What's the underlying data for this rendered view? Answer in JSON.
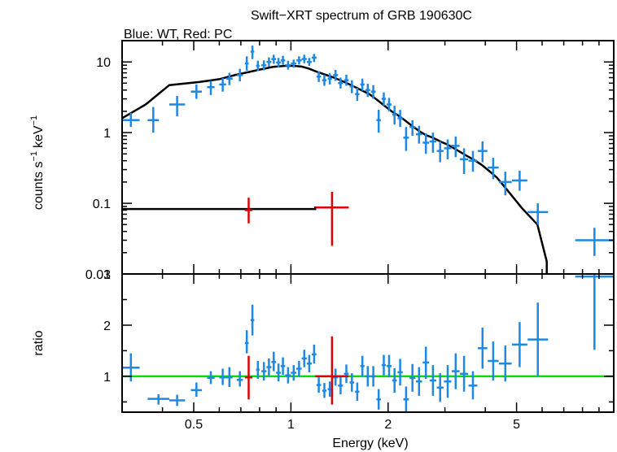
{
  "chart_data": [
    {
      "type": "scatter",
      "title": "Swift−XRT spectrum of GRB 190630C",
      "subtitle": "Blue: WT, Red: PC",
      "ylabel_main": "counts s",
      "ylabel_unit": "keV",
      "ylabel_sup": "−1",
      "yscale": "log",
      "ylim": [
        0.01,
        20
      ],
      "xscale": "log",
      "xlim": [
        0.3,
        10
      ],
      "yticks": [
        {
          "v": 0.01,
          "label": "0.01"
        },
        {
          "v": 0.1,
          "label": "0.1"
        },
        {
          "v": 1,
          "label": "1"
        },
        {
          "v": 10,
          "label": "10"
        }
      ],
      "colors": {
        "wt": "#1e88e5",
        "pc": "#dd0000",
        "model": "#000000"
      },
      "series": [
        {
          "key": "wt",
          "points": [
            [
              0.3,
              0.34,
              1.5,
              1.2,
              1.9
            ],
            [
              0.36,
              0.39,
              1.5,
              1.0,
              2.3
            ],
            [
              0.42,
              0.47,
              2.5,
              1.7,
              3.3
            ],
            [
              0.49,
              0.53,
              3.8,
              3.0,
              4.8
            ],
            [
              0.55,
              0.58,
              4.4,
              3.4,
              5.4
            ],
            [
              0.6,
              0.63,
              4.8,
              3.8,
              5.9
            ],
            [
              0.63,
              0.66,
              5.8,
              4.7,
              7.0
            ],
            [
              0.68,
              0.71,
              6.5,
              5.3,
              8.0
            ],
            [
              0.72,
              0.74,
              9.5,
              7.5,
              12
            ],
            [
              0.75,
              0.77,
              14,
              11,
              17
            ],
            [
              0.78,
              0.8,
              8.8,
              7.4,
              10.4
            ],
            [
              0.81,
              0.84,
              9.0,
              7.6,
              10.5
            ],
            [
              0.84,
              0.87,
              10.0,
              8.6,
              11.6
            ],
            [
              0.87,
              0.9,
              11.0,
              9.4,
              12.6
            ],
            [
              0.9,
              0.93,
              9.8,
              8.4,
              11.4
            ],
            [
              0.93,
              0.96,
              10.5,
              9.1,
              12.2
            ],
            [
              0.96,
              1.0,
              9.0,
              7.8,
              10.4
            ],
            [
              1.0,
              1.04,
              9.5,
              8.3,
              10.8
            ],
            [
              1.04,
              1.08,
              10.5,
              9.2,
              12.0
            ],
            [
              1.08,
              1.12,
              11.0,
              9.6,
              12.6
            ],
            [
              1.12,
              1.16,
              10.0,
              8.8,
              11.4
            ],
            [
              1.16,
              1.2,
              11.5,
              10.0,
              13.0
            ],
            [
              1.2,
              1.24,
              6.2,
              5.2,
              7.4
            ],
            [
              1.25,
              1.29,
              5.5,
              4.6,
              6.6
            ],
            [
              1.3,
              1.34,
              5.8,
              4.8,
              6.9
            ],
            [
              1.35,
              1.4,
              6.5,
              5.4,
              7.7
            ],
            [
              1.4,
              1.45,
              5.0,
              4.2,
              6.0
            ],
            [
              1.46,
              1.51,
              5.5,
              4.6,
              6.6
            ],
            [
              1.52,
              1.57,
              4.5,
              3.6,
              5.5
            ],
            [
              1.58,
              1.63,
              3.5,
              2.8,
              4.3
            ],
            [
              1.64,
              1.69,
              4.8,
              3.9,
              5.8
            ],
            [
              1.7,
              1.76,
              4.0,
              3.2,
              4.9
            ],
            [
              1.77,
              1.83,
              3.8,
              3.0,
              4.7
            ],
            [
              1.84,
              1.9,
              1.5,
              1.0,
              2.1
            ],
            [
              1.91,
              1.97,
              3.0,
              2.4,
              3.7
            ],
            [
              1.98,
              2.05,
              2.5,
              2.0,
              3.1
            ],
            [
              2.06,
              2.13,
              1.8,
              1.3,
              2.4
            ],
            [
              2.14,
              2.22,
              1.6,
              1.2,
              2.1
            ],
            [
              2.23,
              2.32,
              0.85,
              0.55,
              1.2
            ],
            [
              2.33,
              2.43,
              1.2,
              0.9,
              1.5
            ],
            [
              2.44,
              2.55,
              0.95,
              0.7,
              1.25
            ],
            [
              2.56,
              2.68,
              0.72,
              0.5,
              0.98
            ],
            [
              2.69,
              2.82,
              0.75,
              0.52,
              1.0
            ],
            [
              2.83,
              2.97,
              0.55,
              0.38,
              0.75
            ],
            [
              2.98,
              3.14,
              0.6,
              0.42,
              0.8
            ],
            [
              3.15,
              3.33,
              0.65,
              0.45,
              0.88
            ],
            [
              3.34,
              3.54,
              0.42,
              0.26,
              0.6
            ],
            [
              3.55,
              3.78,
              0.4,
              0.28,
              0.55
            ],
            [
              3.79,
              4.06,
              0.55,
              0.38,
              0.75
            ],
            [
              4.07,
              4.4,
              0.32,
              0.22,
              0.44
            ],
            [
              4.41,
              4.83,
              0.2,
              0.13,
              0.28
            ],
            [
              4.84,
              5.4,
              0.21,
              0.15,
              0.29
            ],
            [
              5.41,
              6.26,
              0.075,
              0.05,
              0.1
            ],
            [
              7.6,
              9.99,
              0.03,
              0.018,
              0.045
            ]
          ]
        },
        {
          "key": "pc",
          "points": [
            [
              0.72,
              0.76,
              0.08,
              0.052,
              0.12
            ],
            [
              1.19,
              1.51,
              0.087,
              0.025,
              0.145
            ]
          ]
        }
      ],
      "model": {
        "key": "model",
        "points": [
          [
            0.3,
            1.6
          ],
          [
            0.355,
            2.5
          ],
          [
            0.42,
            4.7
          ],
          [
            0.52,
            5.2
          ],
          [
            0.6,
            5.7
          ],
          [
            0.67,
            6.5
          ],
          [
            0.74,
            7.2
          ],
          [
            0.8,
            7.8
          ],
          [
            0.88,
            8.5
          ],
          [
            0.96,
            8.8
          ],
          [
            1.02,
            8.8
          ],
          [
            1.08,
            8.6
          ],
          [
            1.14,
            8.0
          ],
          [
            1.2,
            7.3
          ],
          [
            1.28,
            6.6
          ],
          [
            1.36,
            6.0
          ],
          [
            1.45,
            5.3
          ],
          [
            1.55,
            4.6
          ],
          [
            1.65,
            4.0
          ],
          [
            1.75,
            3.5
          ],
          [
            1.85,
            2.9
          ],
          [
            1.95,
            2.4
          ],
          [
            2.05,
            2.0
          ],
          [
            2.15,
            1.75
          ],
          [
            2.25,
            1.5
          ],
          [
            2.37,
            1.25
          ],
          [
            2.5,
            1.05
          ],
          [
            2.62,
            0.92
          ],
          [
            2.75,
            0.85
          ],
          [
            2.9,
            0.75
          ],
          [
            3.05,
            0.68
          ],
          [
            3.2,
            0.6
          ],
          [
            3.35,
            0.53
          ],
          [
            3.5,
            0.47
          ],
          [
            3.7,
            0.41
          ],
          [
            3.9,
            0.35
          ],
          [
            4.1,
            0.29
          ],
          [
            4.35,
            0.23
          ],
          [
            4.7,
            0.15
          ],
          [
            5.2,
            0.085
          ],
          [
            5.8,
            0.05
          ],
          [
            6.2,
            0.015
          ]
        ]
      },
      "model_pc": {
        "points": [
          [
            0.3,
            0.083
          ],
          [
            1.19,
            0.083
          ],
          [
            1.19,
            0.087
          ],
          [
            1.51,
            0.087
          ]
        ]
      }
    },
    {
      "type": "scatter",
      "xlabel": "Energy (keV)",
      "ylabel": "ratio",
      "yscale": "linear",
      "ylim": [
        0.3,
        3.0
      ],
      "xscale": "log",
      "xlim": [
        0.3,
        10
      ],
      "xticks": [
        {
          "v": 0.5,
          "label": "0.5"
        },
        {
          "v": 1,
          "label": "1"
        },
        {
          "v": 2,
          "label": "2"
        },
        {
          "v": 5,
          "label": "5"
        }
      ],
      "yticks": [
        {
          "v": 1,
          "label": "1"
        },
        {
          "v": 2,
          "label": "2"
        },
        {
          "v": 3,
          "label": "3"
        }
      ],
      "reference_line": {
        "y": 1,
        "color": "#00dd00"
      },
      "series": [
        {
          "key": "wt",
          "points": [
            [
              0.3,
              0.34,
              1.17,
              0.9,
              1.45
            ],
            [
              0.36,
              0.42,
              0.56,
              0.45,
              0.65
            ],
            [
              0.42,
              0.47,
              0.53,
              0.42,
              0.64
            ],
            [
              0.49,
              0.53,
              0.73,
              0.6,
              0.88
            ],
            [
              0.55,
              0.58,
              0.97,
              0.85,
              1.1
            ],
            [
              0.6,
              0.63,
              0.98,
              0.83,
              1.15
            ],
            [
              0.63,
              0.66,
              0.98,
              0.79,
              1.18
            ],
            [
              0.68,
              0.71,
              0.93,
              0.8,
              1.1
            ],
            [
              0.72,
              0.74,
              1.65,
              1.45,
              1.9
            ],
            [
              0.75,
              0.77,
              2.1,
              1.8,
              2.4
            ],
            [
              0.78,
              0.8,
              1.13,
              0.95,
              1.3
            ],
            [
              0.81,
              0.84,
              1.1,
              0.92,
              1.28
            ],
            [
              0.84,
              0.87,
              1.18,
              1.0,
              1.35
            ],
            [
              0.87,
              0.9,
              1.28,
              1.1,
              1.48
            ],
            [
              0.9,
              0.93,
              1.07,
              0.9,
              1.25
            ],
            [
              0.93,
              0.96,
              1.2,
              1.03,
              1.37
            ],
            [
              0.96,
              1.0,
              1.02,
              0.86,
              1.18
            ],
            [
              1.0,
              1.04,
              1.07,
              0.92,
              1.22
            ],
            [
              1.04,
              1.08,
              1.15,
              1.0,
              1.3
            ],
            [
              1.08,
              1.12,
              1.35,
              1.18,
              1.52
            ],
            [
              1.12,
              1.16,
              1.25,
              1.08,
              1.42
            ],
            [
              1.16,
              1.2,
              1.43,
              1.25,
              1.62
            ],
            [
              1.2,
              1.24,
              0.83,
              0.68,
              0.98
            ],
            [
              1.25,
              1.29,
              0.72,
              0.58,
              0.87
            ],
            [
              1.3,
              1.34,
              0.75,
              0.6,
              0.9
            ],
            [
              1.35,
              1.4,
              0.98,
              0.82,
              1.15
            ],
            [
              1.4,
              1.45,
              0.82,
              0.65,
              0.99
            ],
            [
              1.46,
              1.51,
              1.05,
              0.87,
              1.23
            ],
            [
              1.52,
              1.57,
              0.88,
              0.7,
              1.06
            ],
            [
              1.58,
              1.63,
              0.7,
              0.52,
              0.88
            ],
            [
              1.64,
              1.69,
              1.2,
              1.0,
              1.4
            ],
            [
              1.7,
              1.76,
              1.0,
              0.8,
              1.2
            ],
            [
              1.77,
              1.83,
              1.0,
              0.8,
              1.2
            ],
            [
              1.84,
              1.9,
              0.55,
              0.35,
              0.75
            ],
            [
              1.91,
              1.97,
              1.22,
              1.02,
              1.42
            ],
            [
              1.98,
              2.05,
              1.2,
              0.98,
              1.42
            ],
            [
              2.06,
              2.13,
              0.92,
              0.68,
              1.16
            ],
            [
              2.14,
              2.22,
              1.08,
              0.82,
              1.34
            ],
            [
              2.23,
              2.32,
              0.55,
              0.3,
              0.8
            ],
            [
              2.33,
              2.43,
              0.97,
              0.7,
              1.24
            ],
            [
              2.44,
              2.55,
              0.9,
              0.62,
              1.18
            ],
            [
              2.56,
              2.68,
              1.27,
              0.95,
              1.58
            ],
            [
              2.69,
              2.82,
              0.92,
              0.62,
              1.22
            ],
            [
              2.83,
              2.97,
              0.78,
              0.5,
              1.06
            ],
            [
              2.98,
              3.14,
              0.9,
              0.58,
              1.22
            ],
            [
              3.15,
              3.33,
              1.1,
              0.75,
              1.45
            ],
            [
              3.34,
              3.54,
              1.05,
              0.7,
              1.4
            ],
            [
              3.55,
              3.78,
              0.82,
              0.55,
              1.1
            ],
            [
              3.79,
              4.06,
              1.55,
              1.15,
              1.95
            ],
            [
              4.07,
              4.4,
              1.3,
              0.92,
              1.68
            ],
            [
              4.41,
              4.83,
              1.25,
              0.9,
              1.6
            ],
            [
              4.84,
              5.4,
              1.62,
              1.18,
              2.06
            ],
            [
              5.41,
              6.26,
              1.72,
              1.0,
              2.44
            ],
            [
              7.6,
              9.99,
              2.95,
              1.52,
              3.3
            ]
          ]
        },
        {
          "key": "pc",
          "points": [
            [
              0.72,
              0.76,
              0.98,
              0.55,
              1.4
            ],
            [
              1.19,
              1.51,
              1.0,
              0.45,
              1.78
            ]
          ]
        }
      ]
    }
  ]
}
